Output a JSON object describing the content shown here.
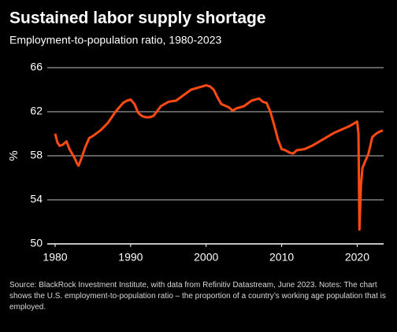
{
  "chart_data": {
    "type": "line",
    "title": "Sustained labor supply shortage",
    "subtitle": "Employment-to-population ratio, 1980-2023",
    "y_label": "%",
    "source": "Source: BlackRock Investment Institute, with data from Refinitiv Datastream, June 2023. Notes: The chart shows the U.S. employment-to-population ratio – the proportion of a country’s working age population that is employed.",
    "color": "#ff4a14",
    "x": [
      1980.0,
      1980.3,
      1980.6,
      1981.0,
      1981.5,
      1981.9,
      1982.5,
      1982.9,
      1983.1,
      1983.5,
      1984.0,
      1984.5,
      1985.0,
      1986.0,
      1987.0,
      1988.0,
      1989.0,
      1989.5,
      1990.0,
      1990.5,
      1991.0,
      1991.5,
      1992.0,
      1992.5,
      1993.0,
      1994.0,
      1995.0,
      1996.0,
      1997.0,
      1998.0,
      1999.0,
      2000.0,
      2000.5,
      2001.0,
      2001.5,
      2002.0,
      2003.0,
      2003.5,
      2004.0,
      2005.0,
      2006.0,
      2007.0,
      2007.5,
      2008.0,
      2008.5,
      2009.0,
      2009.5,
      2010.0,
      2010.5,
      2011.0,
      2011.5,
      2012.0,
      2013.0,
      2014.0,
      2015.0,
      2016.0,
      2017.0,
      2018.0,
      2019.0,
      2020.0,
      2020.17,
      2020.3,
      2020.5,
      2020.7,
      2021.0,
      2021.5,
      2022.0,
      2022.5,
      2023.0,
      2023.4
    ],
    "values": [
      60.0,
      59.2,
      58.9,
      59.0,
      59.3,
      58.6,
      57.9,
      57.3,
      57.1,
      57.8,
      58.8,
      59.6,
      59.8,
      60.3,
      61.0,
      62.0,
      62.8,
      63.0,
      63.1,
      62.7,
      61.9,
      61.6,
      61.5,
      61.5,
      61.6,
      62.5,
      62.9,
      63.0,
      63.5,
      64.0,
      64.2,
      64.4,
      64.3,
      64.0,
      63.3,
      62.7,
      62.4,
      62.1,
      62.3,
      62.5,
      63.0,
      63.2,
      62.9,
      62.8,
      62.0,
      60.8,
      59.5,
      58.6,
      58.5,
      58.3,
      58.2,
      58.5,
      58.6,
      58.9,
      59.3,
      59.7,
      60.1,
      60.4,
      60.7,
      61.1,
      60.0,
      51.3,
      55.3,
      56.9,
      57.4,
      58.2,
      59.7,
      60.0,
      60.2,
      60.3
    ],
    "xlim": [
      1980,
      2023.5
    ],
    "xticks": [
      1980,
      1990,
      2000,
      2010,
      2020
    ],
    "ylim": [
      50,
      66
    ],
    "yticks": [
      50,
      54,
      58,
      62,
      66
    ],
    "grid": true
  }
}
